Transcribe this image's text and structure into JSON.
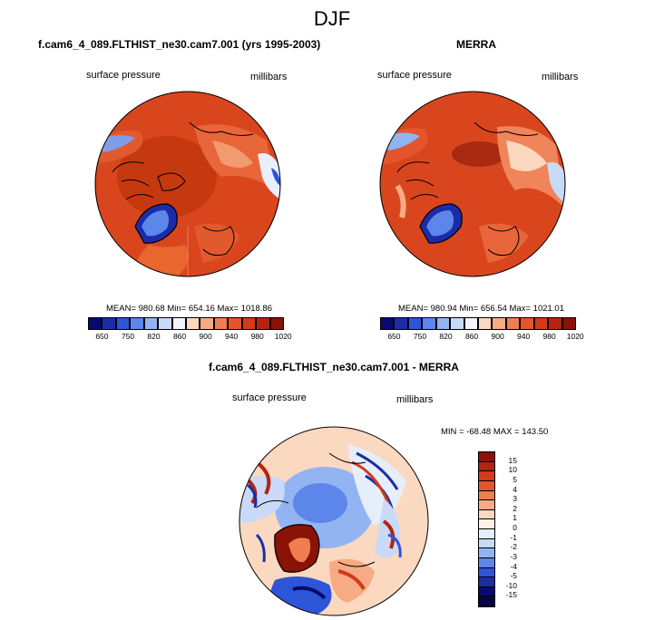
{
  "figure": {
    "season": "DJF",
    "left_panel": {
      "title": "f.cam6_4_089.FLTHIST_ne30.cam7.001 (yrs 1995-2003)",
      "variable": "surface pressure",
      "units": "millibars",
      "stats": "MEAN= 980.68   Min= 654.16   Max= 1018.86"
    },
    "right_panel": {
      "title": "MERRA",
      "variable": "surface pressure",
      "units": "millibars",
      "stats": "MEAN= 980.94   Min= 656.54   Max= 1021.01"
    },
    "diff_panel": {
      "title": "f.cam6_4_089.FLTHIST_ne30.cam7.001 - MERRA",
      "variable": "surface pressure",
      "units": "millibars",
      "stats": "MIN = -68.48  MAX = 143.50"
    },
    "abs_colorbar": {
      "labels": [
        "650",
        "750",
        "820",
        "860",
        "900",
        "940",
        "980",
        "1020"
      ],
      "colors": [
        "#0a0a6e",
        "#1c2ca8",
        "#2d55d8",
        "#5c86ea",
        "#93b4f2",
        "#c9daf8",
        "#f2f4fb",
        "#fbd8c0",
        "#f7ab84",
        "#f07e52",
        "#e5552d",
        "#d23a18",
        "#b52410",
        "#8a1206"
      ]
    },
    "diff_colorbar": {
      "labels": [
        "15",
        "10",
        "5",
        "4",
        "3",
        "2",
        "1",
        "0",
        "-1",
        "-2",
        "-3",
        "-4",
        "-5",
        "-10",
        "-15"
      ],
      "colors": [
        "#8a1206",
        "#b52410",
        "#d23a18",
        "#e5552d",
        "#f07e52",
        "#f7ab84",
        "#fbd8c0",
        "#fdf0e6",
        "#e6eefa",
        "#c9daf8",
        "#93b4f2",
        "#5c86ea",
        "#2d55d8",
        "#1c2ca8",
        "#0a0a6e",
        "#060645"
      ]
    }
  }
}
